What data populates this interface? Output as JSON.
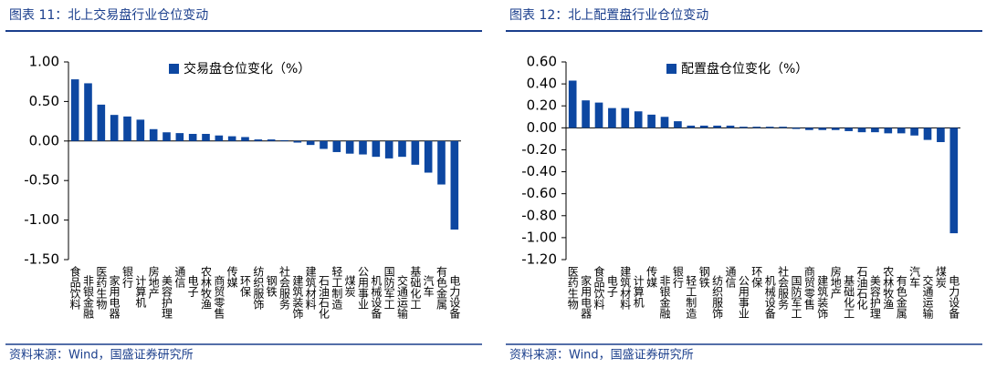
{
  "charts": [
    {
      "chart_data": {
        "type": "bar",
        "title": "图表 11：北上交易盘行业仓位变动",
        "source": "资料来源：Wind，国盛证券研究所",
        "legend": "交易盘仓位变化（%）",
        "color": "#0d47a1",
        "categories": [
          "食品饮料",
          "非银金融",
          "医药生物",
          "家用电器",
          "银行",
          "计算机",
          "房地产",
          "美容护理",
          "通信",
          "电子",
          "农林牧渔",
          "商贸零售",
          "传媒",
          "环保",
          "纺织服饰",
          "钢铁",
          "社会服务",
          "建筑装饰",
          "建筑材料",
          "石油石化",
          "轻工制造",
          "煤炭",
          "公用事业",
          "机械设备",
          "国防军工",
          "交通运输",
          "基础化工",
          "汽车",
          "有色金属",
          "电力设备"
        ],
        "values": [
          0.78,
          0.73,
          0.46,
          0.33,
          0.31,
          0.27,
          0.15,
          0.11,
          0.1,
          0.09,
          0.09,
          0.07,
          0.06,
          0.05,
          0.02,
          0.02,
          0.01,
          -0.02,
          -0.05,
          -0.1,
          -0.14,
          -0.16,
          -0.17,
          -0.2,
          -0.22,
          -0.2,
          -0.3,
          -0.4,
          -0.55,
          -1.12
        ],
        "ylim": [
          -1.5,
          1.0
        ],
        "yticks": [
          {
            "value": -1.5,
            "label": "-1.50"
          },
          {
            "value": -1.0,
            "label": "-1.00"
          },
          {
            "value": -0.5,
            "label": "-0.50"
          },
          {
            "value": 0,
            "label": "0.00"
          },
          {
            "value": 0.5,
            "label": "0.50"
          },
          {
            "value": 1.0,
            "label": "1.00"
          }
        ]
      }
    },
    {
      "chart_data": {
        "type": "bar",
        "title": "图表 12：北上配置盘行业仓位变动",
        "source": "资料来源：Wind，国盛证券研究所",
        "legend": "配置盘仓位变化（%）",
        "color": "#0d47a1",
        "categories": [
          "医药生物",
          "家用电器",
          "食品饮料",
          "电子",
          "建筑材料",
          "计算机",
          "传媒",
          "非银金融",
          "银行",
          "轻工制造",
          "钢铁",
          "纺织服饰",
          "通信",
          "公用事业",
          "环保",
          "机械设备",
          "社会服务",
          "国防军工",
          "商贸零售",
          "建筑装饰",
          "房地产",
          "基础化工",
          "石油石化",
          "美容护理",
          "农林牧渔",
          "有色金属",
          "汽车",
          "交通运输",
          "煤炭",
          "电力设备"
        ],
        "values": [
          0.43,
          0.25,
          0.23,
          0.18,
          0.18,
          0.15,
          0.12,
          0.1,
          0.06,
          0.02,
          0.02,
          0.02,
          0.02,
          0.01,
          0.01,
          0.01,
          0.01,
          -0.01,
          -0.02,
          -0.02,
          -0.02,
          -0.03,
          -0.04,
          -0.04,
          -0.05,
          -0.05,
          -0.07,
          -0.11,
          -0.13,
          -0.96
        ],
        "ylim": [
          -1.2,
          0.6
        ],
        "yticks": [
          {
            "value": -1.2,
            "label": "-1.20"
          },
          {
            "value": -1.0,
            "label": "-1.00"
          },
          {
            "value": -0.8,
            "label": "-0.80"
          },
          {
            "value": -0.6,
            "label": "-0.60"
          },
          {
            "value": -0.4,
            "label": "-0.40"
          },
          {
            "value": -0.2,
            "label": "-0.20"
          },
          {
            "value": 0,
            "label": "0.00"
          },
          {
            "value": 0.2,
            "label": "0.20"
          },
          {
            "value": 0.4,
            "label": "0.40"
          },
          {
            "value": 0.6,
            "label": "0.60"
          }
        ]
      }
    }
  ]
}
